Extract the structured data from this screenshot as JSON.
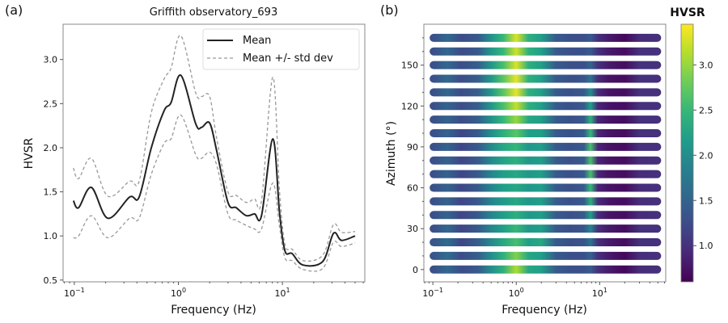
{
  "chart_data": [
    {
      "type": "line",
      "panel_label": "(a)",
      "title": "Griffith  observatory_693",
      "xlabel": "Frequency (Hz)",
      "ylabel": "HVSR",
      "xscale": "log",
      "xlim": [
        0.078,
        62
      ],
      "ylim": [
        0.48,
        3.4
      ],
      "xticks": [
        {
          "value": 0.1,
          "base": "10",
          "exp": "−1"
        },
        {
          "value": 1,
          "base": "10",
          "exp": "0"
        },
        {
          "value": 10,
          "base": "10",
          "exp": "1"
        }
      ],
      "yticks": [
        0.5,
        1.0,
        1.5,
        2.0,
        2.5,
        3.0
      ],
      "ytick_labels": [
        "0.5",
        "1.0",
        "1.5",
        "2.0",
        "2.5",
        "3.0"
      ],
      "legend": {
        "position": "top-right",
        "entries": [
          {
            "label": "Mean",
            "style": "solid"
          },
          {
            "label": "Mean +/- std dev",
            "style": "dashed"
          }
        ]
      },
      "series": [
        {
          "name": "Mean",
          "color": "#222222",
          "x": [
            0.098,
            0.11,
            0.146,
            0.21,
            0.34,
            0.42,
            0.55,
            0.73,
            0.85,
            1.06,
            1.47,
            1.67,
            2.0,
            2.34,
            3.0,
            3.6,
            4.5,
            5.4,
            6.3,
            8.1,
            9.4,
            10.6,
            12.4,
            15.8,
            24.4,
            31,
            37,
            50
          ],
          "y": [
            1.4,
            1.32,
            1.55,
            1.2,
            1.44,
            1.44,
            2.0,
            2.42,
            2.51,
            2.82,
            2.27,
            2.23,
            2.28,
            1.96,
            1.38,
            1.32,
            1.23,
            1.25,
            1.23,
            2.1,
            1.26,
            0.83,
            0.8,
            0.67,
            0.71,
            1.03,
            0.95,
            1.0
          ]
        },
        {
          "name": "Mean + std dev",
          "color": "#999999",
          "x": [
            0.098,
            0.11,
            0.146,
            0.21,
            0.34,
            0.42,
            0.55,
            0.73,
            0.85,
            1.06,
            1.47,
            1.67,
            2.0,
            2.34,
            3.0,
            3.6,
            4.5,
            5.4,
            6.3,
            8.1,
            9.4,
            10.6,
            12.4,
            15.8,
            24.4,
            31,
            37,
            50
          ],
          "y": [
            1.77,
            1.65,
            1.88,
            1.45,
            1.62,
            1.62,
            2.4,
            2.78,
            2.9,
            3.27,
            2.62,
            2.58,
            2.58,
            2.1,
            1.5,
            1.46,
            1.38,
            1.42,
            1.4,
            2.8,
            1.5,
            0.9,
            0.85,
            0.72,
            0.78,
            1.13,
            1.04,
            1.05
          ]
        },
        {
          "name": "Mean - std dev",
          "color": "#999999",
          "x": [
            0.098,
            0.11,
            0.146,
            0.21,
            0.34,
            0.42,
            0.55,
            0.73,
            0.85,
            1.06,
            1.47,
            1.67,
            2.0,
            2.34,
            3.0,
            3.6,
            4.5,
            5.4,
            6.3,
            8.1,
            9.4,
            10.6,
            12.4,
            15.8,
            24.4,
            31,
            37,
            50
          ],
          "y": [
            0.98,
            1.0,
            1.23,
            0.98,
            1.2,
            1.2,
            1.7,
            2.05,
            2.1,
            2.37,
            1.92,
            1.88,
            1.95,
            1.8,
            1.25,
            1.18,
            1.12,
            1.08,
            1.08,
            1.6,
            1.1,
            0.75,
            0.72,
            0.62,
            0.63,
            0.93,
            0.88,
            0.92
          ]
        }
      ]
    },
    {
      "type": "heatmap",
      "panel_label": "(b)",
      "xlabel": "Frequency (Hz)",
      "ylabel": "Azimuth (°)",
      "xscale": "log",
      "xlim": [
        0.078,
        62
      ],
      "ylim": [
        -9,
        180
      ],
      "xticks": [
        {
          "value": 0.1,
          "base": "10",
          "exp": "−1"
        },
        {
          "value": 1,
          "base": "10",
          "exp": "0"
        },
        {
          "value": 10,
          "base": "10",
          "exp": "1"
        }
      ],
      "yticks": [
        0,
        30,
        60,
        90,
        120,
        150
      ],
      "ytick_labels": [
        "0",
        "30",
        "60",
        "90",
        "120",
        "150"
      ],
      "colorbar": {
        "title": "HVSR",
        "colormap": "viridis",
        "range": [
          0.6,
          3.45
        ],
        "ticks": [
          1.0,
          1.5,
          2.0,
          2.5,
          3.0
        ],
        "tick_labels": [
          "1.0",
          "1.5",
          "2.0",
          "2.5",
          "3.0"
        ]
      },
      "azimuths": [
        0,
        10,
        20,
        30,
        40,
        50,
        60,
        70,
        80,
        90,
        100,
        110,
        120,
        130,
        140,
        150,
        160,
        170
      ],
      "frequencies": [
        0.1,
        0.15,
        0.22,
        0.35,
        0.5,
        0.7,
        1.0,
        1.4,
        2.0,
        3.0,
        4.5,
        6.5,
        7.8,
        9.5,
        13,
        20,
        30,
        50
      ],
      "values": [
        [
          1.3,
          1.55,
          1.25,
          1.4,
          2.0,
          2.4,
          3.1,
          2.3,
          2.2,
          1.4,
          1.3,
          1.3,
          1.4,
          1.0,
          0.8,
          0.65,
          0.95,
          1.0
        ],
        [
          1.35,
          1.6,
          1.25,
          1.45,
          2.0,
          2.4,
          2.9,
          2.3,
          2.2,
          1.4,
          1.3,
          1.3,
          1.5,
          1.0,
          0.8,
          0.65,
          0.95,
          1.0
        ],
        [
          1.35,
          1.6,
          1.2,
          1.45,
          1.95,
          2.3,
          2.6,
          2.2,
          2.3,
          1.4,
          1.3,
          1.35,
          1.7,
          1.0,
          0.8,
          0.7,
          1.0,
          1.0
        ],
        [
          1.3,
          1.55,
          1.2,
          1.4,
          1.9,
          2.2,
          2.5,
          2.1,
          2.2,
          1.4,
          1.3,
          1.35,
          1.9,
          1.0,
          0.8,
          0.7,
          1.0,
          1.0
        ],
        [
          1.3,
          1.5,
          1.2,
          1.4,
          1.9,
          2.2,
          2.4,
          2.1,
          2.2,
          1.4,
          1.3,
          1.4,
          2.2,
          0.95,
          0.75,
          0.7,
          0.95,
          1.0
        ],
        [
          1.3,
          1.5,
          1.2,
          1.4,
          1.9,
          2.15,
          2.3,
          2.1,
          2.2,
          1.4,
          1.3,
          1.4,
          2.4,
          0.95,
          0.75,
          0.7,
          0.95,
          1.0
        ],
        [
          1.3,
          1.5,
          1.2,
          1.4,
          1.9,
          2.2,
          2.3,
          2.1,
          2.2,
          1.4,
          1.3,
          1.4,
          2.5,
          0.9,
          0.75,
          0.7,
          0.95,
          1.0
        ],
        [
          1.3,
          1.5,
          1.2,
          1.4,
          1.9,
          2.2,
          2.3,
          2.1,
          2.2,
          1.4,
          1.3,
          1.4,
          2.6,
          0.9,
          0.75,
          0.7,
          0.95,
          1.0
        ],
        [
          1.3,
          1.5,
          1.2,
          1.4,
          1.95,
          2.25,
          2.4,
          2.1,
          2.2,
          1.4,
          1.3,
          1.4,
          2.6,
          0.9,
          0.75,
          0.7,
          0.95,
          1.0
        ],
        [
          1.3,
          1.5,
          1.2,
          1.4,
          1.95,
          2.3,
          2.5,
          2.1,
          2.2,
          1.4,
          1.3,
          1.4,
          2.6,
          0.9,
          0.75,
          0.7,
          1.0,
          1.0
        ],
        [
          1.3,
          1.5,
          1.2,
          1.4,
          2.0,
          2.4,
          2.7,
          2.2,
          2.2,
          1.4,
          1.3,
          1.4,
          2.5,
          0.9,
          0.75,
          0.7,
          1.0,
          1.0
        ],
        [
          1.3,
          1.5,
          1.25,
          1.45,
          2.05,
          2.5,
          3.0,
          2.3,
          2.2,
          1.4,
          1.3,
          1.4,
          2.4,
          0.9,
          0.75,
          0.7,
          1.0,
          1.0
        ],
        [
          1.3,
          1.5,
          1.25,
          1.45,
          2.1,
          2.6,
          3.2,
          2.4,
          2.2,
          1.4,
          1.3,
          1.4,
          2.2,
          0.9,
          0.75,
          0.7,
          1.0,
          1.0
        ],
        [
          1.3,
          1.55,
          1.25,
          1.45,
          2.1,
          2.7,
          3.35,
          2.4,
          2.2,
          1.4,
          1.3,
          1.4,
          2.0,
          0.95,
          0.75,
          0.7,
          1.0,
          1.0
        ],
        [
          1.3,
          1.55,
          1.25,
          1.45,
          2.1,
          2.7,
          3.35,
          2.4,
          2.2,
          1.4,
          1.3,
          1.35,
          1.7,
          0.95,
          0.75,
          0.7,
          1.0,
          1.0
        ],
        [
          1.3,
          1.55,
          1.25,
          1.45,
          2.1,
          2.6,
          3.3,
          2.4,
          2.2,
          1.4,
          1.3,
          1.3,
          1.5,
          1.0,
          0.8,
          0.7,
          1.0,
          1.0
        ],
        [
          1.3,
          1.55,
          1.25,
          1.4,
          2.1,
          2.5,
          3.25,
          2.4,
          2.2,
          1.4,
          1.3,
          1.3,
          1.4,
          1.0,
          0.8,
          0.7,
          1.0,
          1.0
        ],
        [
          1.3,
          1.55,
          1.25,
          1.4,
          2.05,
          2.5,
          3.3,
          2.4,
          2.2,
          1.4,
          1.3,
          1.3,
          1.4,
          1.0,
          0.8,
          0.65,
          0.95,
          1.0
        ]
      ]
    }
  ]
}
